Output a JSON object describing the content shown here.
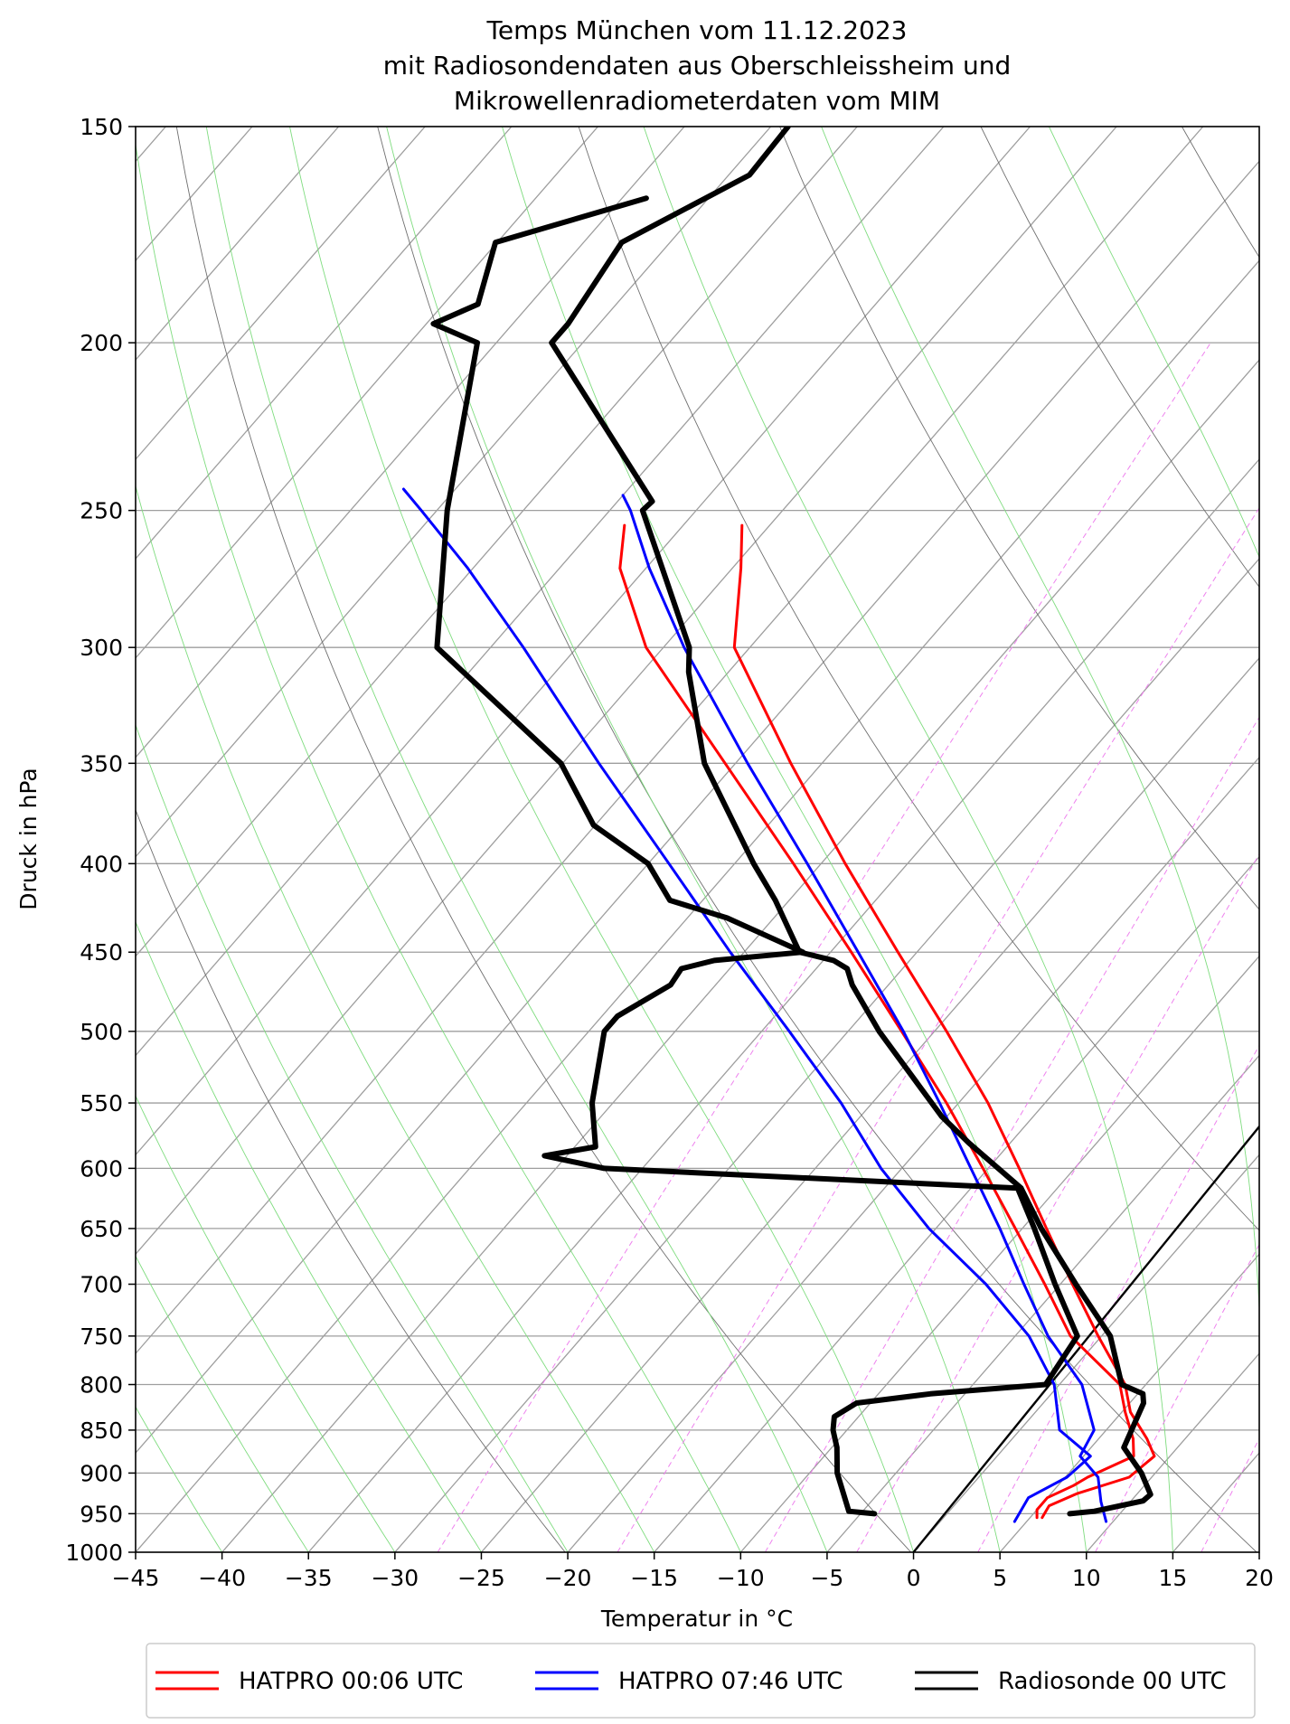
{
  "chart_data": {
    "type": "skew-t",
    "title_lines": [
      "Temps München vom 11.12.2023",
      "mit Radiosondendaten aus Oberschleissheim und",
      "Mikrowellenradiometerdaten vom MIM"
    ],
    "xlabel": "Temperatur in ",
    "xlabel_unit": "°C",
    "ylabel": "Druck in hPa",
    "xlim": [
      -45,
      20
    ],
    "ylim": [
      1000,
      150
    ],
    "x_ticks": [
      "−45",
      "−40",
      "−35",
      "−30",
      "−25",
      "−20",
      "−15",
      "−10",
      "−5",
      "0",
      "5",
      "10",
      "15",
      "20"
    ],
    "y_ticks": [
      "1000",
      "950",
      "900",
      "850",
      "800",
      "750",
      "700",
      "650",
      "600",
      "550",
      "500",
      "450",
      "400",
      "350",
      "300",
      "250",
      "200",
      "150"
    ],
    "legend": [
      "HATPRO 00:06 UTC",
      "HATPRO 07:46 UTC",
      "Radiosonde 00 UTC"
    ],
    "colors": {
      "hatpro_00": "#ff0000",
      "hatpro_07": "#0000ff",
      "radiosonde": "#000000",
      "dry_adiabat": "#808080",
      "moist_adiabat": "#90ee90",
      "mixing_ratio": "#ee82ee"
    },
    "series": [
      {
        "name": "HATPRO 00:06 UTC",
        "kind": "temperature",
        "p": [
          955,
          940,
          925,
          905,
          880,
          860,
          830,
          800,
          750,
          700,
          650,
          600,
          550,
          500,
          450,
          400,
          350,
          300,
          270,
          255
        ],
        "t": [
          5.7,
          5.5,
          6.5,
          8.7,
          9.1,
          7.8,
          5.5,
          3.8,
          -0.2,
          -4.3,
          -8.6,
          -13.2,
          -18.3,
          -24.3,
          -31.1,
          -38.6,
          -46.8,
          -55.9,
          -59.5,
          -61.6
        ]
      },
      {
        "name": "HATPRO 00:06 UTC",
        "kind": "dewpoint",
        "p": [
          955,
          945,
          930,
          915,
          905,
          880,
          860,
          830,
          800,
          750,
          700,
          650,
          600,
          550,
          500,
          450,
          400,
          350,
          300,
          270,
          255
        ],
        "t": [
          5.4,
          5.0,
          5.0,
          5.9,
          6.3,
          7.9,
          7.0,
          5.2,
          3.5,
          -1.8,
          -5.9,
          -10.4,
          -15.3,
          -20.7,
          -26.9,
          -33.8,
          -41.6,
          -50.6,
          -61.0,
          -66.5,
          -68.4
        ]
      },
      {
        "name": "HATPRO 07:46 UTC",
        "kind": "temperature",
        "p": [
          960,
          935,
          905,
          880,
          850,
          800,
          750,
          700,
          650,
          600,
          550,
          500,
          450,
          400,
          350,
          300,
          270,
          250,
          245
        ],
        "t": [
          9.6,
          8.3,
          6.9,
          4.8,
          4.3,
          1.3,
          -3.1,
          -7.1,
          -11.3,
          -16.0,
          -21.1,
          -26.8,
          -33.4,
          -40.8,
          -49.3,
          -58.8,
          -64.8,
          -68.8,
          -70.0
        ]
      },
      {
        "name": "HATPRO 07:46 UTC",
        "kind": "dewpoint",
        "p": [
          960,
          930,
          905,
          880,
          850,
          800,
          750,
          700,
          650,
          600,
          550,
          500,
          450,
          400,
          350,
          300,
          270,
          250,
          243
        ],
        "t": [
          4.3,
          3.9,
          5.1,
          5.4,
          2.3,
          -0.3,
          -4.2,
          -9.3,
          -15.4,
          -21.2,
          -26.8,
          -33.4,
          -40.8,
          -48.8,
          -57.9,
          -68.1,
          -75.3,
          -80.9,
          -83.0
        ]
      },
      {
        "name": "Radiosonde 00 UTC",
        "kind": "temperature",
        "p": [
          950,
          947,
          934,
          926,
          900,
          870,
          820,
          810,
          800,
          750,
          700,
          650,
          616,
          580,
          560,
          500,
          470,
          460,
          455,
          450,
          420,
          400,
          350,
          310,
          300,
          250,
          247,
          200,
          195,
          175,
          160,
          150
        ],
        "t": [
          7.1,
          8.4,
          10.7,
          10.8,
          9.2,
          6.9,
          5.8,
          5.3,
          3.6,
          0.5,
          -4.1,
          -8.9,
          -12.1,
          -17.4,
          -20.3,
          -28.2,
          -32.1,
          -33.2,
          -34.4,
          -36.8,
          -40.8,
          -43.9,
          -51.8,
          -57.3,
          -58.5,
          -68.1,
          -68.0,
          -81.8,
          -81.8,
          -82.8,
          -78.8,
          -79.0
        ]
      },
      {
        "name": "Radiosonde 00 UTC",
        "kind": "dewpoint",
        "p": [
          950,
          947,
          900,
          870,
          850,
          835,
          820,
          810,
          800,
          750,
          700,
          650,
          616,
          600,
          590,
          583,
          550,
          500,
          490,
          470,
          460,
          455,
          450,
          430,
          420,
          400,
          380,
          350,
          300,
          250,
          200,
          195,
          190,
          175,
          165
        ],
        "t": [
          -4.2,
          -5.8,
          -8.4,
          -9.7,
          -10.8,
          -11.4,
          -10.8,
          -7.0,
          -0.8,
          -1.4,
          -5.3,
          -9.3,
          -12.3,
          -37.2,
          -41.3,
          -38.8,
          -41.2,
          -44.1,
          -44.1,
          -42.6,
          -42.8,
          -41.3,
          -36.6,
          -42.7,
          -46.9,
          -50.0,
          -55.1,
          -60.1,
          -73.1,
          -79.4,
          -86.1,
          -89.6,
          -88.0,
          -90.1,
          -83.6
        ]
      }
    ]
  }
}
